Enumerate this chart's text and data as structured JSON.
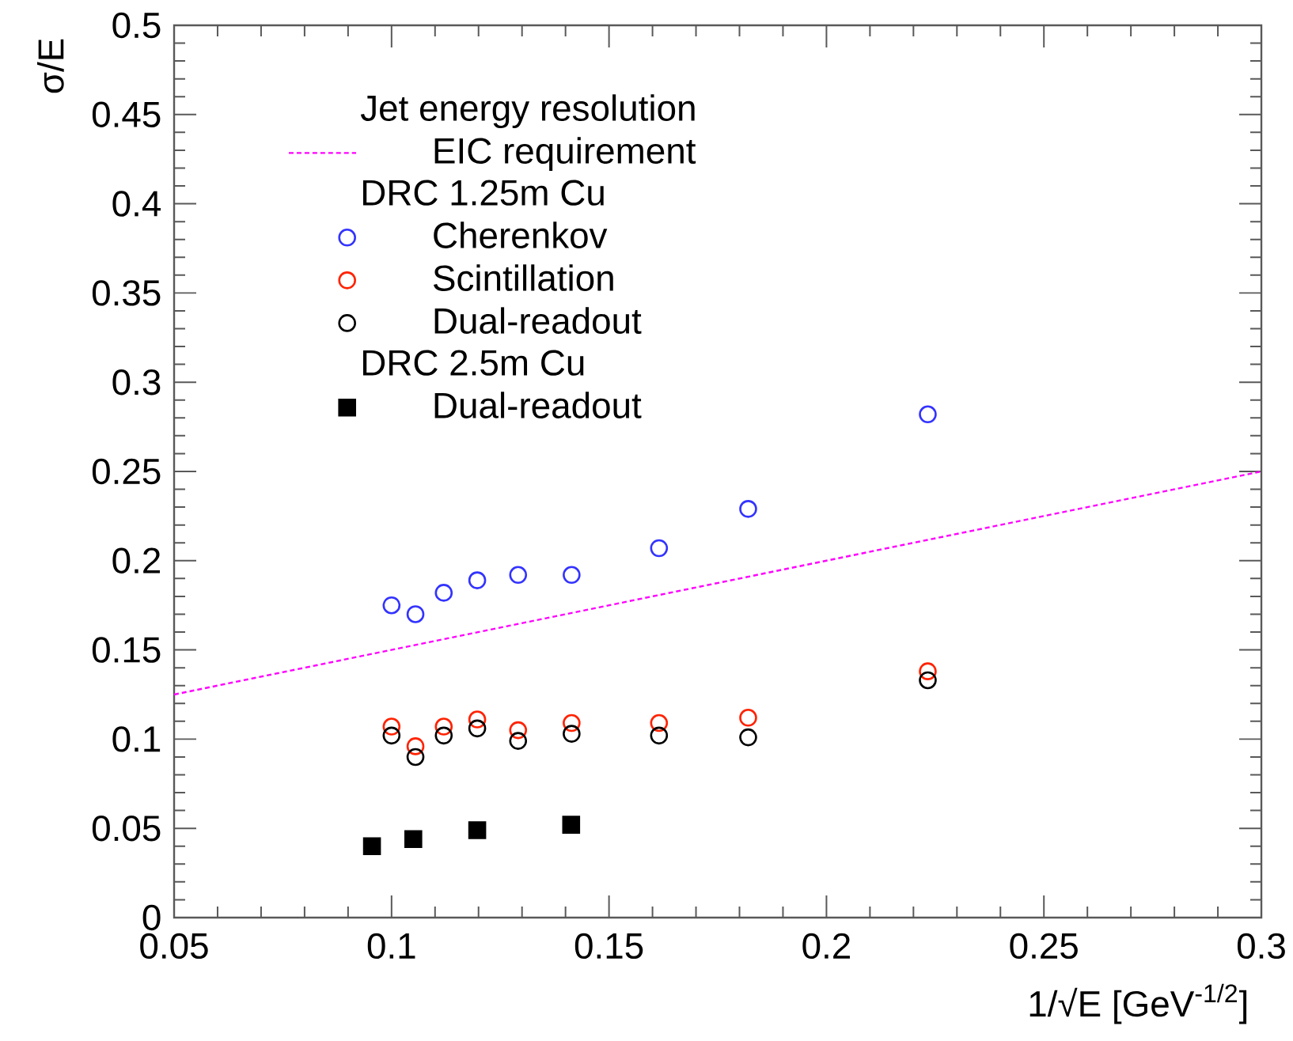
{
  "chart_data": {
    "type": "scatter",
    "xlabel": "1/√E [GeV$^{-1/2}$]",
    "ylabel": "σ/E",
    "legend_title": "Jet energy resolution",
    "annotations": [
      "DRC 1.25m Cu",
      "DRC 2.5m Cu"
    ],
    "xlim": [
      0.05,
      0.3
    ],
    "ylim": [
      0,
      0.5
    ],
    "xticks": [
      0.05,
      0.1,
      0.15,
      0.2,
      0.25,
      0.3
    ],
    "yticks": [
      0,
      0.05,
      0.1,
      0.15,
      0.2,
      0.25,
      0.3,
      0.35,
      0.4,
      0.45,
      0.5
    ],
    "legend": "top left",
    "grid": false,
    "series": [
      {
        "name": "EIC requirement",
        "type": "line",
        "color": "#ff00ff",
        "line_style": "dashed",
        "marker": "none",
        "x": [
          0.05,
          0.3
        ],
        "values": [
          0.125,
          0.25
        ]
      },
      {
        "name": "Cherenkov",
        "color": "#3333ff",
        "marker": "circle",
        "x": [
          0.1,
          0.1055,
          0.112,
          0.1197,
          0.1291,
          0.1414,
          0.1615,
          0.182,
          0.2233
        ],
        "values": [
          0.175,
          0.17,
          0.182,
          0.189,
          0.192,
          0.192,
          0.207,
          0.229,
          0.282
        ]
      },
      {
        "name": "Scintillation",
        "color": "#ff2200",
        "marker": "circle",
        "x": [
          0.1,
          0.1055,
          0.112,
          0.1197,
          0.1291,
          0.1414,
          0.1615,
          0.182,
          0.2233
        ],
        "values": [
          0.107,
          0.096,
          0.107,
          0.111,
          0.105,
          0.109,
          0.109,
          0.112,
          0.138
        ]
      },
      {
        "name": "Dual-readout",
        "color": "#000000",
        "marker": "circle",
        "x": [
          0.1,
          0.1055,
          0.112,
          0.1197,
          0.1291,
          0.1414,
          0.1615,
          0.182,
          0.2233
        ],
        "values": [
          0.102,
          0.09,
          0.102,
          0.106,
          0.099,
          0.103,
          0.102,
          0.101,
          0.133
        ]
      },
      {
        "name": "Dual-readout",
        "color": "#000000",
        "marker": "square",
        "x": [
          0.0955,
          0.105,
          0.1197,
          0.1413
        ],
        "values": [
          0.04,
          0.044,
          0.049,
          0.052
        ]
      }
    ]
  }
}
